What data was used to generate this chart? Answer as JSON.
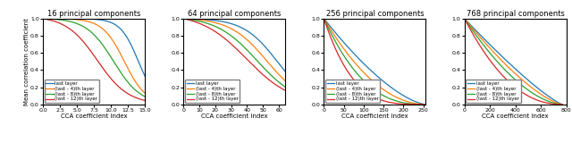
{
  "subplots": [
    {
      "title": "16 principal components",
      "n": 16,
      "xlim": [
        0,
        15
      ],
      "xticks": [
        0.0,
        2.5,
        5.0,
        7.5,
        10.0,
        12.5,
        15.0
      ]
    },
    {
      "title": "64 principal components",
      "n": 64,
      "xlim": [
        0,
        64
      ],
      "xticks": [
        0,
        10,
        20,
        30,
        40,
        50,
        60
      ]
    },
    {
      "title": "256 principal components",
      "n": 256,
      "xlim": [
        0,
        256
      ],
      "xticks": [
        0,
        50,
        100,
        150,
        200,
        250
      ]
    },
    {
      "title": "768 principal components",
      "n": 768,
      "xlim": [
        0,
        800
      ],
      "xticks": [
        0,
        200,
        400,
        600,
        800
      ]
    }
  ],
  "legend_labels": [
    "last layer",
    "(last - 4)th layer",
    "(last - 8)th layer",
    "(last - 12)th layer"
  ],
  "line_colors": [
    "#1f77b4",
    "#ff7f0e",
    "#2ca02c",
    "#d62728"
  ],
  "xlabel": "CCA coefficient index",
  "ylabel": "Mean correlation coefficient",
  "shape_params": [
    {
      "alphas": [
        1.8,
        2.8,
        4.0,
        6.5
      ]
    },
    {
      "alphas": [
        1.8,
        2.5,
        3.4,
        5.0
      ]
    },
    {
      "alphas": [
        1.5,
        2.0,
        2.6,
        3.6
      ]
    },
    {
      "alphas": [
        1.2,
        1.4,
        1.7,
        2.2
      ]
    }
  ]
}
